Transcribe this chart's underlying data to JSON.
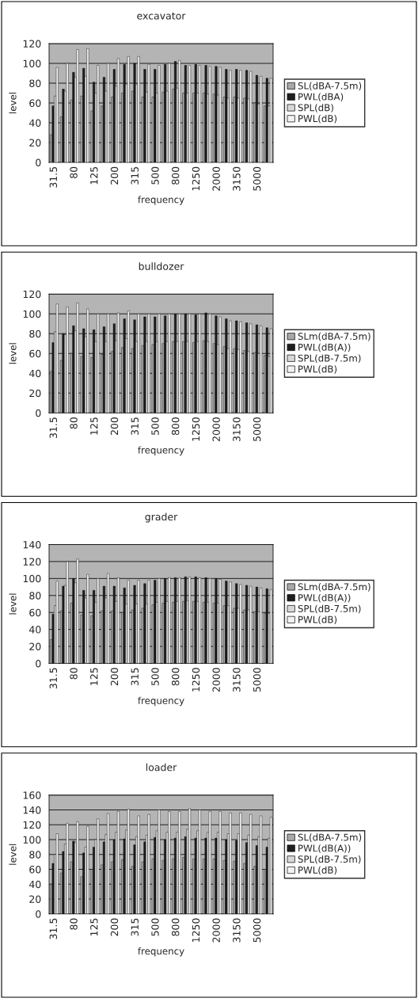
{
  "chart_data": [
    {
      "type": "bar",
      "title": "excavator",
      "xlabel": "frequency",
      "ylabel": "level",
      "ylim": [
        0,
        120
      ],
      "yticks": [
        0,
        20,
        40,
        60,
        80,
        100,
        120
      ],
      "grid": "y",
      "legend": "right",
      "categories": [
        "31.5",
        null,
        "80",
        null,
        "125",
        null,
        "200",
        null,
        "315",
        null,
        "500",
        null,
        "800",
        null,
        "1250",
        null,
        "2000",
        null,
        "3150",
        null,
        "5000",
        null
      ],
      "series": [
        {
          "name": "SL(dBA-7.5m)",
          "color": "#a8a8a8",
          "values": [
            28,
            46,
            63,
            67,
            52,
            57,
            66,
            70,
            72,
            66,
            66,
            71,
            74,
            70,
            70,
            70,
            69,
            66,
            66,
            65,
            60,
            57
          ]
        },
        {
          "name": "PWL(dBA)",
          "color": "#1e1e1e",
          "values": [
            57,
            74,
            91,
            95,
            81,
            86,
            94,
            99,
            100,
            94,
            94,
            99,
            102,
            98,
            99,
            98,
            97,
            94,
            94,
            93,
            88,
            85
          ]
        },
        {
          "name": "SPL(dB)",
          "color": "#d8d8d8",
          "values": [
            67,
            72,
            86,
            87,
            70,
            72,
            77,
            79,
            79,
            71,
            70,
            72,
            75,
            70,
            70,
            69,
            68,
            65,
            65,
            64,
            59,
            57
          ]
        },
        {
          "name": "PWL(dB)",
          "color": "#f2f2f2",
          "values": [
            96,
            100,
            114,
            115,
            98,
            100,
            105,
            107,
            107,
            99,
            98,
            100,
            103,
            98,
            98,
            97,
            96,
            93,
            93,
            92,
            87,
            85
          ]
        }
      ]
    },
    {
      "type": "bar",
      "title": "bulldozer",
      "xlabel": "frequency",
      "ylabel": "level",
      "ylim": [
        0,
        120
      ],
      "yticks": [
        0,
        20,
        40,
        60,
        80,
        100,
        120
      ],
      "grid": "y",
      "legend": "right",
      "categories": [
        "31.5",
        null,
        "80",
        null,
        "125",
        null,
        "200",
        null,
        "315",
        null,
        "500",
        null,
        "800",
        null,
        "1250",
        null,
        "2000",
        null,
        "3150",
        null,
        "5000",
        null
      ],
      "series": [
        {
          "name": "SLm(dBA-7.5m)",
          "color": "#a8a8a8",
          "values": [
            42,
            53,
            60,
            57,
            56,
            59,
            62,
            66,
            65,
            68,
            69,
            70,
            72,
            72,
            71,
            73,
            70,
            67,
            65,
            63,
            61,
            58
          ]
        },
        {
          "name": "PWL(dB(A))",
          "color": "#1e1e1e",
          "values": [
            71,
            80,
            88,
            85,
            84,
            87,
            90,
            95,
            94,
            97,
            97,
            98,
            100,
            100,
            99,
            101,
            98,
            95,
            93,
            91,
            89,
            86
          ]
        },
        {
          "name": "SPL(dB-7.5m)",
          "color": "#d8d8d8",
          "values": [
            82,
            79,
            83,
            77,
            72,
            72,
            73,
            75,
            72,
            72,
            72,
            72,
            72,
            72,
            72,
            72,
            69,
            65,
            64,
            62,
            60,
            57
          ]
        },
        {
          "name": "PWL(dB)",
          "color": "#f2f2f2",
          "values": [
            110,
            107,
            111,
            105,
            100,
            100,
            101,
            103,
            100,
            100,
            100,
            100,
            100,
            100,
            100,
            100,
            97,
            93,
            92,
            90,
            88,
            85
          ]
        }
      ]
    },
    {
      "type": "bar",
      "title": "grader",
      "xlabel": "frequency",
      "ylabel": "level",
      "ylim": [
        0,
        140
      ],
      "yticks": [
        0,
        20,
        40,
        60,
        80,
        100,
        120,
        140
      ],
      "grid": "y",
      "legend": "right",
      "categories": [
        "31.5",
        null,
        "80",
        null,
        "125",
        null,
        "200",
        null,
        "315",
        null,
        "500",
        null,
        "800",
        null,
        "1250",
        null,
        "2000",
        null,
        "3150",
        null,
        "5000",
        null
      ],
      "series": [
        {
          "name": "SLm(dBA-7.5m)",
          "color": "#a8a8a8",
          "values": [
            28,
            62,
            71,
            57,
            56,
            62,
            62,
            60,
            63,
            65,
            69,
            71,
            72,
            73,
            73,
            72,
            71,
            68,
            65,
            63,
            61,
            59
          ]
        },
        {
          "name": "PWL(dB(A))",
          "color": "#1e1e1e",
          "values": [
            58,
            91,
            100,
            86,
            86,
            91,
            91,
            89,
            92,
            94,
            98,
            100,
            101,
            102,
            102,
            101,
            100,
            97,
            94,
            92,
            90,
            88
          ]
        },
        {
          "name": "SPL(dB-7.5m)",
          "color": "#d8d8d8",
          "values": [
            68,
            92,
            95,
            77,
            72,
            77,
            73,
            70,
            70,
            70,
            72,
            73,
            73,
            74,
            73,
            72,
            71,
            68,
            65,
            63,
            61,
            59
          ]
        },
        {
          "name": "PWL(dB)",
          "color": "#f2f2f2",
          "values": [
            97,
            120,
            123,
            105,
            100,
            106,
            101,
            98,
            98,
            98,
            100,
            101,
            101,
            102,
            101,
            100,
            99,
            96,
            93,
            91,
            89,
            87
          ]
        }
      ]
    },
    {
      "type": "bar",
      "title": "loader",
      "xlabel": "frequency",
      "ylabel": "level",
      "ylim": [
        0,
        160
      ],
      "yticks": [
        0,
        20,
        40,
        60,
        80,
        100,
        120,
        140,
        160
      ],
      "grid": "y",
      "legend": "right",
      "categories": [
        "31.5",
        null,
        "80",
        null,
        "125",
        null,
        "200",
        null,
        "315",
        null,
        "500",
        null,
        "800",
        null,
        "1250",
        null,
        "2000",
        null,
        "3150",
        null,
        "5000",
        null
      ],
      "series": [
        {
          "name": "SL(dBA-7.5m)",
          "color": "#a8a8a8",
          "values": [
            40,
            55,
            70,
            50,
            60,
            66,
            70,
            73,
            64,
            70,
            74,
            72,
            74,
            76,
            74,
            74,
            74,
            72,
            71,
            68,
            64,
            60
          ]
        },
        {
          "name": "PWL(dB(A))",
          "color": "#1e1e1e",
          "values": [
            68,
            84,
            98,
            82,
            90,
            97,
            100,
            101,
            93,
            97,
            103,
            100,
            102,
            104,
            102,
            102,
            102,
            100,
            99,
            96,
            92,
            90
          ]
        },
        {
          "name": "SPL(dB-7.5m)",
          "color": "#d8d8d8",
          "values": [
            80,
            94,
            96,
            90,
            100,
            107,
            110,
            113,
            104,
            106,
            112,
            110,
            110,
            114,
            112,
            110,
            110,
            108,
            108,
            106,
            104,
            102
          ]
        },
        {
          "name": "PWL(dB)",
          "color": "#f2f2f2",
          "values": [
            108,
            122,
            124,
            118,
            128,
            135,
            138,
            141,
            132,
            134,
            140,
            138,
            138,
            142,
            140,
            138,
            138,
            136,
            136,
            134,
            132,
            130
          ]
        }
      ]
    }
  ]
}
